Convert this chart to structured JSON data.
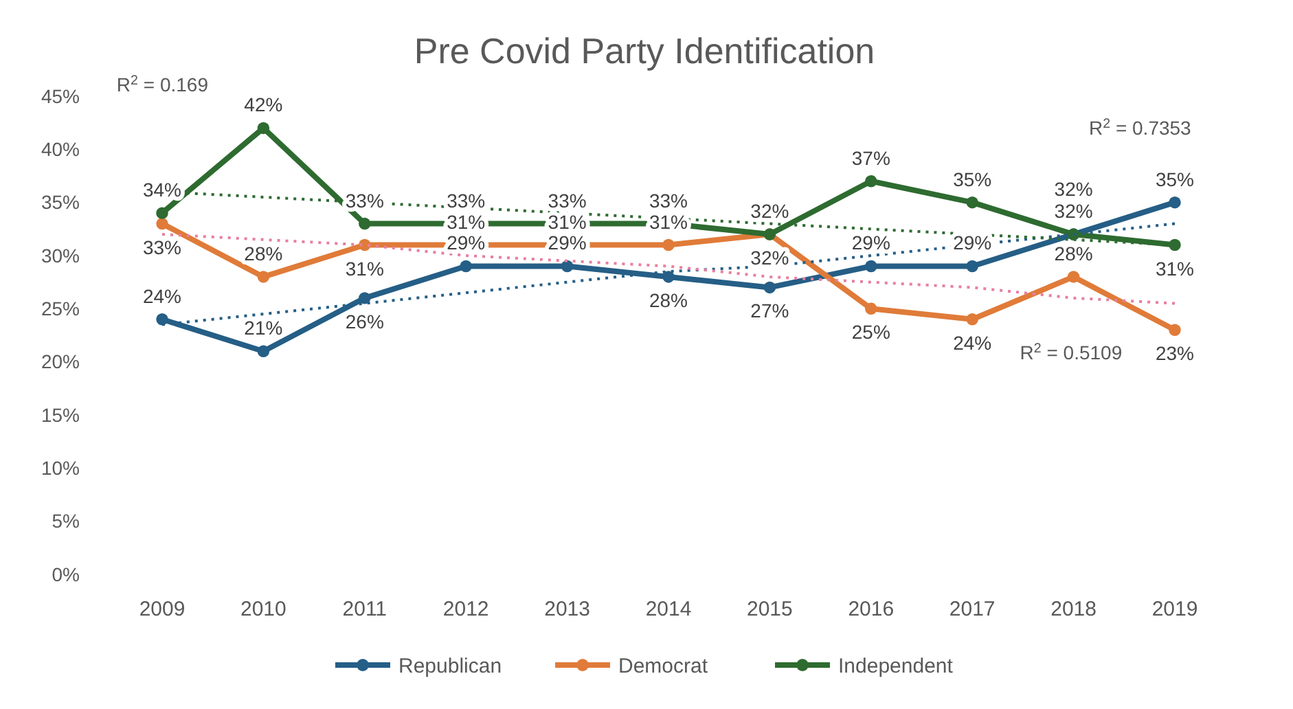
{
  "chart_data": {
    "type": "line",
    "title": "Pre Covid Party Identification",
    "categories": [
      "2009",
      "2010",
      "2011",
      "2012",
      "2013",
      "2014",
      "2015",
      "2016",
      "2017",
      "2018",
      "2019"
    ],
    "ylim": [
      0,
      45
    ],
    "yticks": [
      {
        "value": 0,
        "label": "0%"
      },
      {
        "value": 5,
        "label": "5%"
      },
      {
        "value": 10,
        "label": "10%"
      },
      {
        "value": 15,
        "label": "15%"
      },
      {
        "value": 20,
        "label": "20%"
      },
      {
        "value": 25,
        "label": "25%"
      },
      {
        "value": 30,
        "label": "30%"
      },
      {
        "value": 35,
        "label": "35%"
      },
      {
        "value": 40,
        "label": "40%"
      },
      {
        "value": 45,
        "label": "45%"
      }
    ],
    "grid": false,
    "legend": "bottom",
    "marker": "circle",
    "line_style": "solid",
    "series": [
      {
        "name": "Republican",
        "color": "#255e86",
        "values": [
          24,
          21,
          26,
          29,
          29,
          28,
          27,
          29,
          29,
          32,
          35
        ],
        "value_labels": [
          "24%",
          "21%",
          "26%",
          "29%",
          "29%",
          "28%",
          "27%",
          "29%",
          "29%",
          "32%",
          "35%"
        ]
      },
      {
        "name": "Democrat",
        "color": "#e07b39",
        "values": [
          33,
          28,
          31,
          31,
          31,
          31,
          32,
          25,
          24,
          28,
          23
        ],
        "value_labels": [
          "33%",
          "28%",
          "31%",
          "31%",
          "31%",
          "31%",
          "32%",
          "25%",
          "24%",
          "28%",
          "23%"
        ]
      },
      {
        "name": "Independent",
        "color": "#2e6b30",
        "values": [
          34,
          42,
          33,
          33,
          33,
          33,
          32,
          37,
          35,
          32,
          31
        ],
        "value_labels": [
          "34%",
          "42%",
          "33%",
          "33%",
          "33%",
          "33%",
          "32%",
          "37%",
          "35%",
          "32%",
          "31%"
        ]
      },
      {
        "type": "line",
        "color": "#255e86",
        "values": [
          23.5,
          24.5,
          25.5,
          26.5,
          27.5,
          28.5,
          29,
          30,
          31,
          32,
          33
        ],
        "line_style": "dotted",
        "marker": "none"
      },
      {
        "type": "line",
        "color": "#e87fa0",
        "values": [
          32,
          31.5,
          31,
          30,
          29.5,
          29,
          28,
          27.5,
          27,
          26,
          25.5
        ],
        "line_style": "dotted",
        "marker": "none"
      },
      {
        "type": "line",
        "color": "#2e6b30",
        "values": [
          36,
          35.5,
          35,
          34.5,
          34,
          33.5,
          33,
          32.5,
          32,
          31.5,
          31
        ],
        "line_style": "dotted",
        "marker": "none"
      }
    ],
    "annotations": [
      "R$^{2}$ = 0.169",
      "R$^{2}$ = 0.7353",
      "R$^{2}$ = 0.5109"
    ]
  }
}
